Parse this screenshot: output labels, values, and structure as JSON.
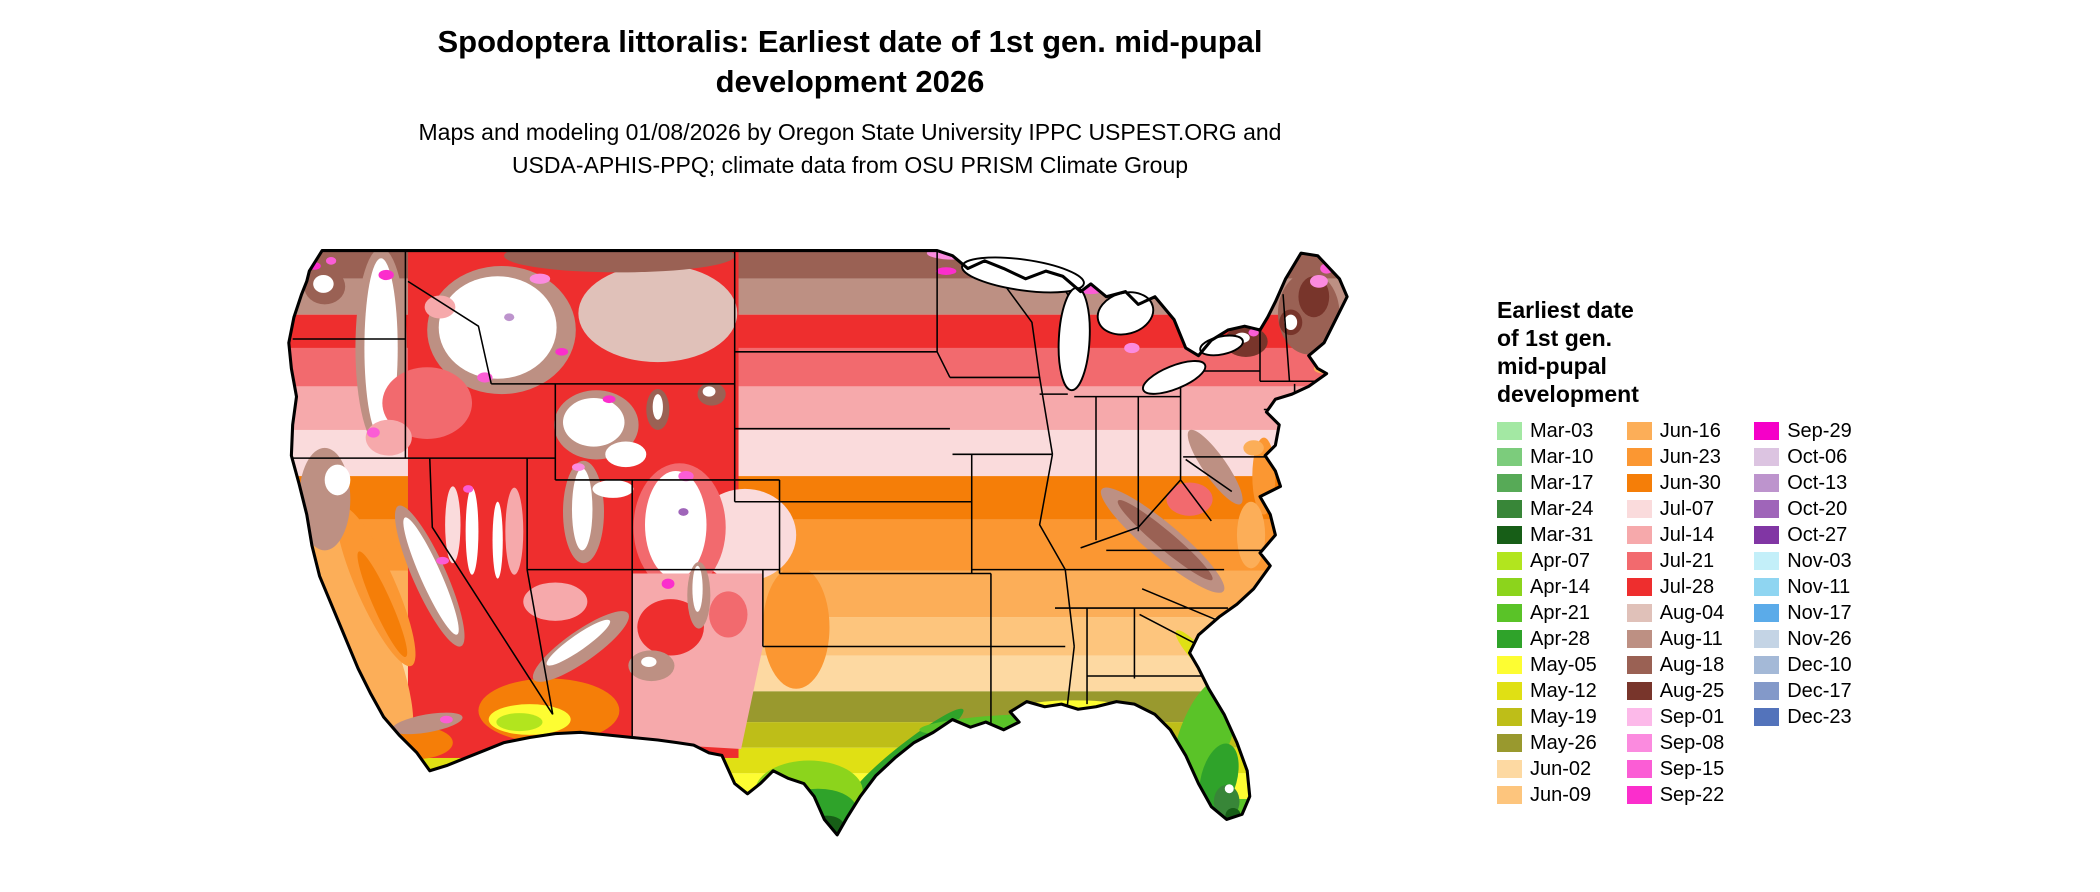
{
  "header": {
    "title_line1": "Spodoptera littoralis: Earliest date of 1st gen. mid-pupal",
    "title_line2": "development 2026",
    "subtitle_line1": "Maps and modeling 01/08/2026 by Oregon State University IPPC USPEST.ORG and",
    "subtitle_line2": "USDA-APHIS-PPQ; climate data from OSU PRISM Climate Group"
  },
  "palette": {
    "mar03": "#a3e8a3",
    "mar10": "#7ccc7c",
    "mar17": "#57aa57",
    "mar24": "#388638",
    "mar31": "#175e17",
    "apr07": "#b2e51e",
    "apr14": "#8cd41c",
    "apr21": "#5ac328",
    "apr28": "#2fa32a",
    "may05": "#fdfd32",
    "may12": "#e0e014",
    "may19": "#bebe18",
    "may26": "#99992e",
    "jun02": "#fdd9a2",
    "jun09": "#fdc57d",
    "jun16": "#fcae58",
    "jun23": "#fb9732",
    "jun30": "#f57e08",
    "jul07": "#fadbdc",
    "jul14": "#f6a9ab",
    "jul21": "#f26a6e",
    "jul28": "#ee2e2e",
    "aug04": "#e0c1b9",
    "aug11": "#bd9083",
    "aug18": "#9a6154",
    "aug25": "#78352b",
    "sep01": "#fcb9e9",
    "sep08": "#fb8bdf",
    "sep15": "#fb5dd5",
    "sep22": "#fb2ecc",
    "sep29": "#f500c8",
    "oct06": "#dcc4e1",
    "oct13": "#bd94cd",
    "oct20": "#9f65b9",
    "oct27": "#8136a4",
    "nov03": "#c3eff9",
    "nov11": "#8fd5f1",
    "nov17": "#5babe9",
    "nov26": "#c4d4e5",
    "dec10": "#a4b9d7",
    "dec17": "#8399c9",
    "dec23": "#5373bb",
    "no_data": "#ffffff"
  },
  "legend": {
    "title_lines": [
      "Earliest date",
      "of 1st gen.",
      "mid-pupal",
      "development"
    ],
    "columns": [
      {
        "items": [
          {
            "label": "Mar-03",
            "key": "mar03"
          },
          {
            "label": "Mar-10",
            "key": "mar10"
          },
          {
            "label": "Mar-17",
            "key": "mar17"
          },
          {
            "label": "Mar-24",
            "key": "mar24"
          },
          {
            "label": "Mar-31",
            "key": "mar31"
          },
          {
            "label": "Apr-07",
            "key": "apr07"
          },
          {
            "label": "Apr-14",
            "key": "apr14"
          },
          {
            "label": "Apr-21",
            "key": "apr21"
          },
          {
            "label": "Apr-28",
            "key": "apr28"
          },
          {
            "label": "May-05",
            "key": "may05"
          },
          {
            "label": "May-12",
            "key": "may12"
          },
          {
            "label": "May-19",
            "key": "may19"
          },
          {
            "label": "May-26",
            "key": "may26"
          },
          {
            "label": "Jun-02",
            "key": "jun02"
          },
          {
            "label": "Jun-09",
            "key": "jun09"
          }
        ]
      },
      {
        "items": [
          {
            "label": "Jun-16",
            "key": "jun16"
          },
          {
            "label": "Jun-23",
            "key": "jun23"
          },
          {
            "label": "Jun-30",
            "key": "jun30"
          },
          {
            "label": "Jul-07",
            "key": "jul07"
          },
          {
            "label": "Jul-14",
            "key": "jul14"
          },
          {
            "label": "Jul-21",
            "key": "jul21"
          },
          {
            "label": "Jul-28",
            "key": "jul28"
          },
          {
            "label": "Aug-04",
            "key": "aug04"
          },
          {
            "label": "Aug-11",
            "key": "aug11"
          },
          {
            "label": "Aug-18",
            "key": "aug18"
          },
          {
            "label": "Aug-25",
            "key": "aug25"
          },
          {
            "label": "Sep-01",
            "key": "sep01"
          },
          {
            "label": "Sep-08",
            "key": "sep08"
          },
          {
            "label": "Sep-15",
            "key": "sep15"
          },
          {
            "label": "Sep-22",
            "key": "sep22"
          }
        ]
      },
      {
        "items": [
          {
            "label": "Sep-29",
            "key": "sep29"
          },
          {
            "label": "Oct-06",
            "key": "oct06"
          },
          {
            "label": "Oct-13",
            "key": "oct13"
          },
          {
            "label": "Oct-20",
            "key": "oct20"
          },
          {
            "label": "Oct-27",
            "key": "oct27"
          },
          {
            "label": "Nov-03",
            "key": "nov03"
          },
          {
            "label": "Nov-11",
            "key": "nov11"
          },
          {
            "label": "Nov-17",
            "key": "nov17"
          },
          {
            "label": "Nov-26",
            "key": "nov26"
          },
          {
            "label": "Dec-10",
            "key": "dec10"
          },
          {
            "label": "Dec-17",
            "key": "dec17"
          },
          {
            "label": "Dec-23",
            "key": "dec23"
          }
        ]
      }
    ]
  }
}
